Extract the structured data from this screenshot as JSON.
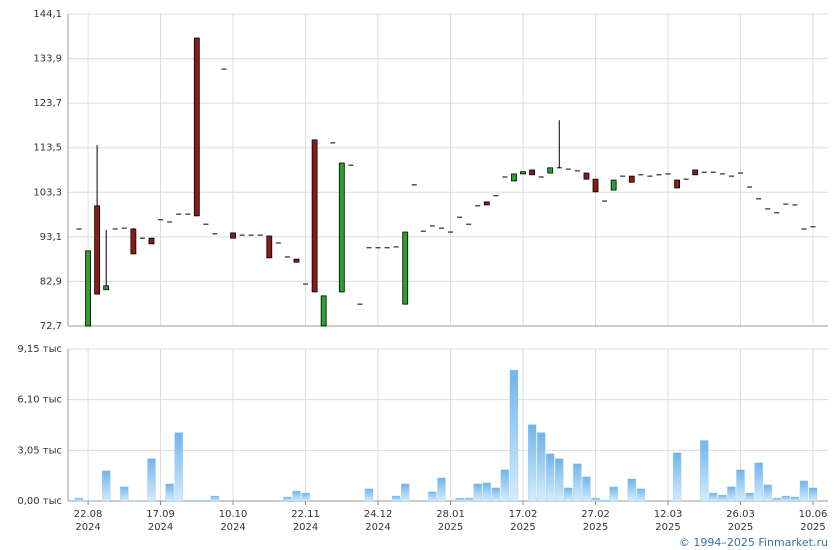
{
  "chart_data": {
    "type": "candlestick",
    "up_color": "#2ea02e",
    "down_color": "#8b1a1a",
    "volume_color": "#8cc8f2",
    "grid": true,
    "categories": [
      null,
      [
        "22.08",
        "2024"
      ],
      null,
      null,
      null,
      null,
      null,
      null,
      null,
      [
        "17.09",
        "2024"
      ],
      null,
      null,
      null,
      null,
      null,
      null,
      null,
      [
        "10.10",
        "2024"
      ],
      null,
      null,
      null,
      null,
      null,
      null,
      null,
      [
        "22.11",
        "2024"
      ],
      null,
      null,
      null,
      null,
      null,
      null,
      null,
      [
        "24.12",
        "2024"
      ],
      null,
      null,
      null,
      null,
      null,
      null,
      null,
      [
        "28.01",
        "2025"
      ],
      null,
      null,
      null,
      null,
      null,
      null,
      null,
      [
        "17.02",
        "2025"
      ],
      null,
      null,
      null,
      null,
      null,
      null,
      null,
      [
        "27.02",
        "2025"
      ],
      null,
      null,
      null,
      null,
      null,
      null,
      null,
      [
        "12.03",
        "2025"
      ],
      null,
      null,
      null,
      null,
      null,
      null,
      null,
      [
        "26.03",
        "2025"
      ],
      null,
      null,
      null,
      null,
      null,
      null,
      null,
      [
        "10.06",
        "2025"
      ]
    ],
    "open": [
      94.9,
      72.7,
      100.2,
      81.0,
      94.9,
      95.1,
      94.9,
      92.8,
      92.8,
      97.0,
      96.5,
      98.3,
      98.3,
      138.6,
      96.0,
      93.8,
      131.5,
      94.0,
      93.5,
      93.5,
      93.5,
      93.3,
      91.7,
      88.5,
      88.0,
      82.3,
      115.3,
      72.7,
      114.6,
      80.5,
      109.5,
      77.7,
      90.6,
      90.6,
      90.6,
      90.8,
      77.7,
      105.0,
      94.4,
      95.6,
      95.1,
      94.2,
      97.6,
      96.0,
      100.2,
      101.1,
      102.5,
      106.8,
      105.9,
      107.5,
      108.4,
      106.8,
      107.7,
      108.9,
      108.6,
      108.2,
      107.7,
      106.3,
      101.3,
      103.8,
      107.0,
      107.0,
      107.3,
      107.0,
      107.3,
      107.5,
      106.1,
      106.3,
      108.4,
      107.9,
      107.9,
      107.5,
      107.0,
      107.7,
      104.5,
      101.8,
      99.5,
      98.6,
      100.6,
      100.4,
      94.9,
      95.4
    ],
    "high": [
      94.9,
      89.9,
      114.1,
      94.7,
      94.9,
      95.1,
      95.1,
      92.8,
      92.8,
      97.0,
      96.5,
      98.3,
      98.3,
      138.6,
      96.0,
      93.8,
      131.5,
      94.0,
      93.5,
      93.5,
      93.5,
      93.3,
      91.7,
      88.5,
      88.0,
      82.3,
      115.3,
      79.6,
      114.6,
      110.0,
      109.5,
      77.7,
      90.6,
      90.6,
      90.6,
      90.8,
      94.2,
      105.0,
      94.4,
      95.6,
      95.1,
      94.2,
      97.6,
      96.0,
      100.2,
      101.1,
      102.5,
      106.8,
      107.5,
      108.0,
      108.4,
      106.8,
      108.9,
      119.8,
      108.6,
      108.2,
      107.7,
      106.3,
      101.3,
      106.1,
      107.0,
      107.0,
      107.3,
      107.0,
      107.3,
      107.5,
      106.1,
      106.3,
      108.4,
      107.9,
      107.9,
      107.5,
      107.0,
      107.7,
      104.5,
      101.8,
      99.5,
      98.6,
      100.6,
      100.4,
      94.9,
      95.4
    ],
    "low": [
      94.9,
      72.7,
      80.0,
      81.0,
      94.9,
      95.1,
      89.2,
      92.8,
      91.5,
      97.0,
      96.5,
      98.3,
      98.3,
      97.9,
      96.0,
      93.8,
      131.5,
      92.8,
      93.5,
      93.5,
      93.5,
      88.3,
      91.7,
      88.5,
      87.3,
      82.3,
      80.5,
      72.7,
      114.6,
      80.5,
      109.5,
      77.7,
      90.6,
      90.6,
      90.6,
      90.8,
      77.7,
      105.0,
      94.4,
      95.6,
      95.1,
      94.2,
      97.6,
      96.0,
      100.2,
      100.4,
      102.5,
      106.8,
      105.9,
      107.5,
      107.3,
      106.8,
      107.7,
      108.9,
      108.6,
      108.2,
      106.3,
      103.4,
      101.3,
      103.8,
      107.0,
      105.6,
      107.3,
      107.0,
      107.3,
      107.5,
      104.3,
      106.3,
      107.3,
      107.9,
      107.9,
      107.5,
      107.0,
      107.7,
      104.5,
      101.8,
      99.5,
      98.6,
      100.6,
      100.4,
      94.9,
      95.4
    ],
    "close": [
      94.9,
      89.9,
      80.0,
      81.9,
      94.9,
      95.1,
      89.2,
      92.8,
      91.5,
      97.0,
      96.5,
      98.3,
      98.3,
      97.9,
      96.0,
      93.8,
      131.5,
      92.8,
      93.5,
      93.5,
      93.5,
      88.3,
      91.7,
      88.5,
      87.3,
      82.3,
      80.5,
      79.6,
      114.6,
      110.0,
      109.5,
      77.7,
      90.6,
      90.6,
      90.6,
      90.8,
      94.2,
      105.0,
      94.4,
      95.6,
      95.1,
      94.2,
      97.6,
      96.0,
      100.2,
      100.4,
      102.5,
      106.8,
      107.5,
      108.0,
      107.3,
      106.8,
      108.9,
      108.9,
      108.6,
      108.2,
      106.3,
      103.4,
      101.3,
      106.1,
      107.0,
      105.6,
      107.3,
      107.0,
      107.3,
      107.5,
      104.3,
      106.3,
      107.3,
      107.9,
      107.9,
      107.5,
      107.0,
      107.7,
      104.5,
      101.8,
      99.5,
      98.6,
      100.6,
      100.4,
      94.9,
      95.4
    ],
    "volume": [
      180,
      30,
      0,
      1820,
      0,
      850,
      30,
      0,
      2550,
      0,
      1030,
      4120,
      50,
      50,
      50,
      300,
      0,
      0,
      0,
      0,
      0,
      0,
      0,
      240,
      600,
      480,
      0,
      0,
      0,
      0,
      0,
      0,
      730,
      0,
      0,
      300,
      1030,
      0,
      0,
      550,
      1390,
      0,
      180,
      180,
      1030,
      1090,
      790,
      1880,
      7880,
      0,
      4600,
      4120,
      2850,
      2550,
      790,
      2240,
      1450,
      180,
      60,
      850,
      0,
      1330,
      730,
      0,
      0,
      0,
      2910,
      0,
      0,
      3640,
      480,
      360,
      850,
      1880,
      480,
      2300,
      970,
      180,
      300,
      240,
      1210,
      790
    ],
    "ylim": [
      72.7,
      144.1
    ],
    "yticks": [
      {
        "value": 72.7,
        "label": "72,7"
      },
      {
        "value": 82.9,
        "label": "82,9"
      },
      {
        "value": 93.1,
        "label": "93,1"
      },
      {
        "value": 103.3,
        "label": "103,3"
      },
      {
        "value": 113.5,
        "label": "113,5"
      },
      {
        "value": 123.7,
        "label": "123,7"
      },
      {
        "value": 133.9,
        "label": "133,9"
      },
      {
        "value": 144.1,
        "label": "144,1"
      }
    ],
    "y2lim": [
      0,
      9150
    ],
    "y2ticks": [
      {
        "value": 0,
        "label": "0,00 тыс"
      },
      {
        "value": 3050,
        "label": "3,05 тыс"
      },
      {
        "value": 6100,
        "label": "6,10 тыс"
      },
      {
        "value": 9150,
        "label": "9,15 тыс"
      }
    ]
  },
  "footer": "© 1994–2025 Finmarket.ru"
}
